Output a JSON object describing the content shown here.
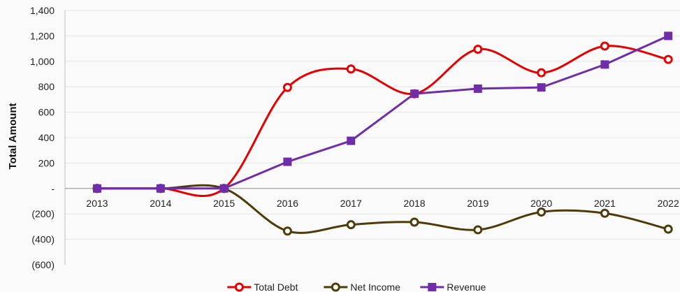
{
  "chart_data": {
    "type": "line",
    "title": "",
    "xlabel": "",
    "ylabel": "Total Amount",
    "categories": [
      "2013",
      "2014",
      "2015",
      "2016",
      "2017",
      "2018",
      "2019",
      "2020",
      "2021",
      "2022"
    ],
    "ylim": [
      -600,
      1400
    ],
    "yticks": [
      -600,
      -400,
      -200,
      0,
      200,
      400,
      600,
      800,
      1000,
      1200,
      1400
    ],
    "ytick_labels": [
      "(600)",
      "(400)",
      "(200)",
      "-",
      "200",
      "400",
      "600",
      "800",
      "1,000",
      "1,200",
      "1,400"
    ],
    "grid": true,
    "legend_position": "bottom",
    "series": [
      {
        "name": "Total Debt",
        "color": "#e60000",
        "marker": "circle",
        "smooth": true,
        "values": [
          0,
          0,
          0,
          795,
          940,
          745,
          1095,
          910,
          1120,
          1015
        ]
      },
      {
        "name": "Net Income",
        "color": "#4d3b0a",
        "marker": "circle",
        "smooth": true,
        "values": [
          0,
          0,
          0,
          -335,
          -285,
          -265,
          -325,
          -185,
          -195,
          -320
        ]
      },
      {
        "name": "Revenue",
        "color": "#6f2da8",
        "marker": "square",
        "smooth": false,
        "values": [
          0,
          0,
          0,
          210,
          375,
          745,
          785,
          795,
          975,
          1200
        ]
      }
    ]
  }
}
